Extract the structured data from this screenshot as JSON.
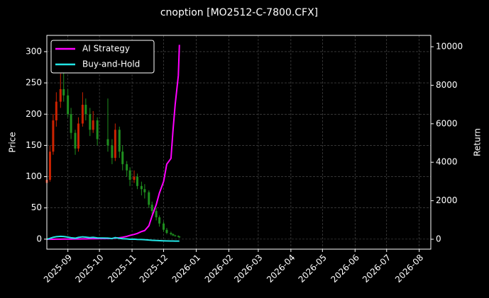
{
  "chart_data": {
    "type": "candlestick",
    "title": "cnoption [MO2512-C-7800.CFX]",
    "ylabel": "Price",
    "y2label": "Return",
    "x": [
      "2025-08-12",
      "2025-08-15",
      "2025-08-18",
      "2025-08-21",
      "2025-08-25",
      "2025-08-28",
      "2025-09-01",
      "2025-09-04",
      "2025-09-08",
      "2025-09-11",
      "2025-09-15",
      "2025-09-18",
      "2025-09-22",
      "2025-09-25",
      "2025-09-29",
      "2025-10-09",
      "2025-10-13",
      "2025-10-16",
      "2025-10-20",
      "2025-10-23",
      "2025-10-27",
      "2025-10-30",
      "2025-11-03",
      "2025-11-06",
      "2025-11-10",
      "2025-11-13",
      "2025-11-17",
      "2025-11-20",
      "2025-11-24",
      "2025-11-27",
      "2025-12-01",
      "2025-12-04",
      "2025-12-08",
      "2025-12-10",
      "2025-12-12",
      "2025-12-15",
      "2025-12-16"
    ],
    "open": [
      90,
      95,
      140,
      190,
      220,
      240,
      230,
      200,
      170,
      145,
      185,
      215,
      200,
      175,
      190,
      160,
      150,
      130,
      175,
      140,
      120,
      110,
      95,
      100,
      85,
      80,
      75,
      55,
      45,
      35,
      25,
      15,
      10,
      8,
      6,
      5,
      4
    ],
    "high": [
      105,
      150,
      200,
      235,
      265,
      270,
      240,
      210,
      175,
      195,
      235,
      225,
      210,
      205,
      195,
      225,
      160,
      185,
      180,
      150,
      125,
      115,
      110,
      105,
      92,
      88,
      78,
      60,
      50,
      38,
      28,
      18,
      12,
      9,
      7,
      6,
      5
    ],
    "low": [
      85,
      92,
      135,
      180,
      210,
      220,
      195,
      160,
      135,
      140,
      180,
      190,
      165,
      170,
      150,
      140,
      120,
      125,
      130,
      110,
      100,
      85,
      90,
      80,
      70,
      65,
      50,
      40,
      30,
      20,
      12,
      8,
      6,
      5,
      4,
      3,
      2
    ],
    "close": [
      95,
      140,
      190,
      220,
      240,
      230,
      200,
      170,
      145,
      185,
      215,
      200,
      175,
      190,
      160,
      150,
      130,
      175,
      140,
      120,
      110,
      95,
      100,
      85,
      80,
      75,
      55,
      45,
      35,
      25,
      15,
      10,
      8,
      6,
      5,
      4,
      3
    ],
    "up_color": "#cc2200",
    "down_color": "#1f8f1f",
    "series": [
      {
        "name": "AI Strategy",
        "color": "#ff00ff",
        "axis": "y2",
        "values": [
          0,
          0,
          0,
          5,
          5,
          10,
          10,
          10,
          15,
          15,
          20,
          20,
          25,
          25,
          30,
          35,
          40,
          60,
          80,
          100,
          150,
          200,
          250,
          300,
          400,
          450,
          700,
          1200,
          1800,
          2400,
          3000,
          3900,
          4200,
          5700,
          7000,
          8500,
          10100
        ]
      },
      {
        "name": "Buy-and-Hold",
        "color": "#22e5e5",
        "axis": "y2",
        "values": [
          0,
          47,
          100,
          132,
          153,
          142,
          111,
          79,
          53,
          95,
          126,
          111,
          84,
          100,
          68,
          58,
          37,
          84,
          47,
          26,
          16,
          0,
          5,
          -11,
          -16,
          -21,
          -42,
          -53,
          -63,
          -74,
          -84,
          -89,
          -92,
          -94,
          -95,
          -96,
          -97
        ]
      }
    ],
    "xlim": [
      "2025-08-12",
      "2026-08-12"
    ],
    "xticks": [
      {
        "value": "2025-09-01",
        "label": "2025-09"
      },
      {
        "value": "2025-10-01",
        "label": "2025-10"
      },
      {
        "value": "2025-11-01",
        "label": "2025-11"
      },
      {
        "value": "2025-12-01",
        "label": "2025-12"
      },
      {
        "value": "2026-01-01",
        "label": "2026-01"
      },
      {
        "value": "2026-02-01",
        "label": "2026-02"
      },
      {
        "value": "2026-03-01",
        "label": "2026-03"
      },
      {
        "value": "2026-04-01",
        "label": "2026-04"
      },
      {
        "value": "2026-05-01",
        "label": "2026-05"
      },
      {
        "value": "2026-06-01",
        "label": "2026-06"
      },
      {
        "value": "2026-07-01",
        "label": "2026-07"
      },
      {
        "value": "2026-08-01",
        "label": "2026-08"
      }
    ],
    "ylim": [
      -16,
      326
    ],
    "yticks": [
      0,
      50,
      100,
      150,
      200,
      250,
      300
    ],
    "y2lim": [
      -515,
      10590
    ],
    "y2ticks": [
      0,
      2000,
      4000,
      6000,
      8000,
      10000
    ],
    "grid": true,
    "legend": "upper left"
  }
}
